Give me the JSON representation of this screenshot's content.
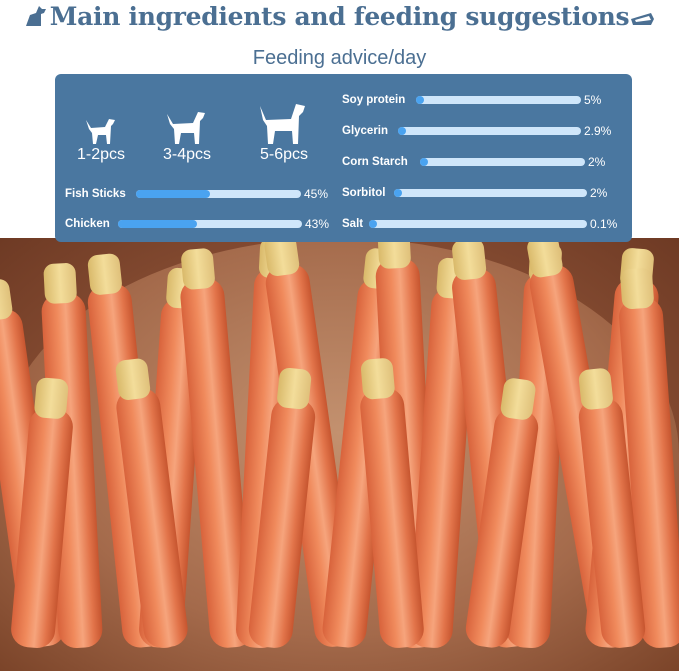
{
  "title": "Main ingredients and feeding suggestions",
  "subtitle": "Feeding advice/day",
  "dogs": [
    {
      "label": "1-2pcs",
      "size": "small"
    },
    {
      "label": "3-4pcs",
      "size": "medium"
    },
    {
      "label": "5-6pcs",
      "size": "large"
    }
  ],
  "ingredients_left": [
    {
      "name": "Fish Sticks",
      "value": "45%",
      "fraction": 0.45
    },
    {
      "name": "Chicken",
      "value": "43%",
      "fraction": 0.43
    }
  ],
  "ingredients_right": [
    {
      "name": "Soy protein",
      "value": "5%",
      "fraction": 0.05
    },
    {
      "name": "Glycerin",
      "value": "2.9%",
      "fraction": 0.029
    },
    {
      "name": "Corn Starch",
      "value": "2%",
      "fraction": 0.02
    },
    {
      "name": "Sorbitol",
      "value": "2%",
      "fraction": 0.02
    },
    {
      "name": "Salt",
      "value": "0.1%",
      "fraction": 0.001
    }
  ],
  "colors": {
    "title": "#4b6f92",
    "panel": "#4a77a0",
    "bar_track": "#cfe6fa",
    "bar_fill": "#4aa3f0"
  }
}
